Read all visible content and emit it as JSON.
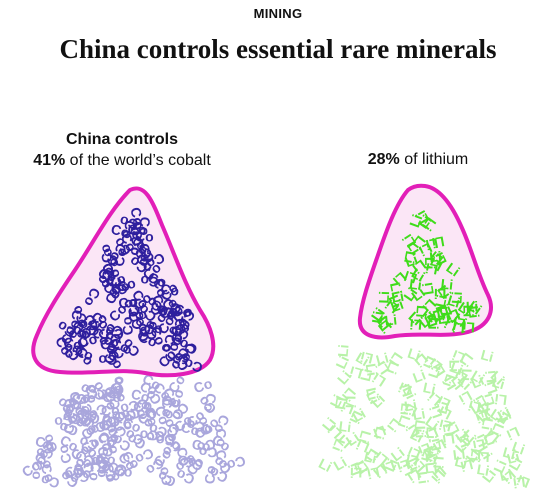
{
  "section": "MINING",
  "headline": "China controls essential rare minerals",
  "cobalt": {
    "caption_top": "China controls",
    "percent": "41%",
    "caption_rest": "of the world’s cobalt",
    "share": 0.41,
    "symbol": "Co",
    "color_china": "#2e1f9e",
    "color_rest": "#a9a6dc"
  },
  "lithium": {
    "percent": "28%",
    "caption_rest": "of lithium",
    "share": 0.28,
    "symbol": "Li",
    "color_china": "#3fdc1a",
    "color_rest": "#b8f2a8"
  },
  "highlight": {
    "outline": "#e21fb8",
    "fill": "#fbe6f6"
  }
}
